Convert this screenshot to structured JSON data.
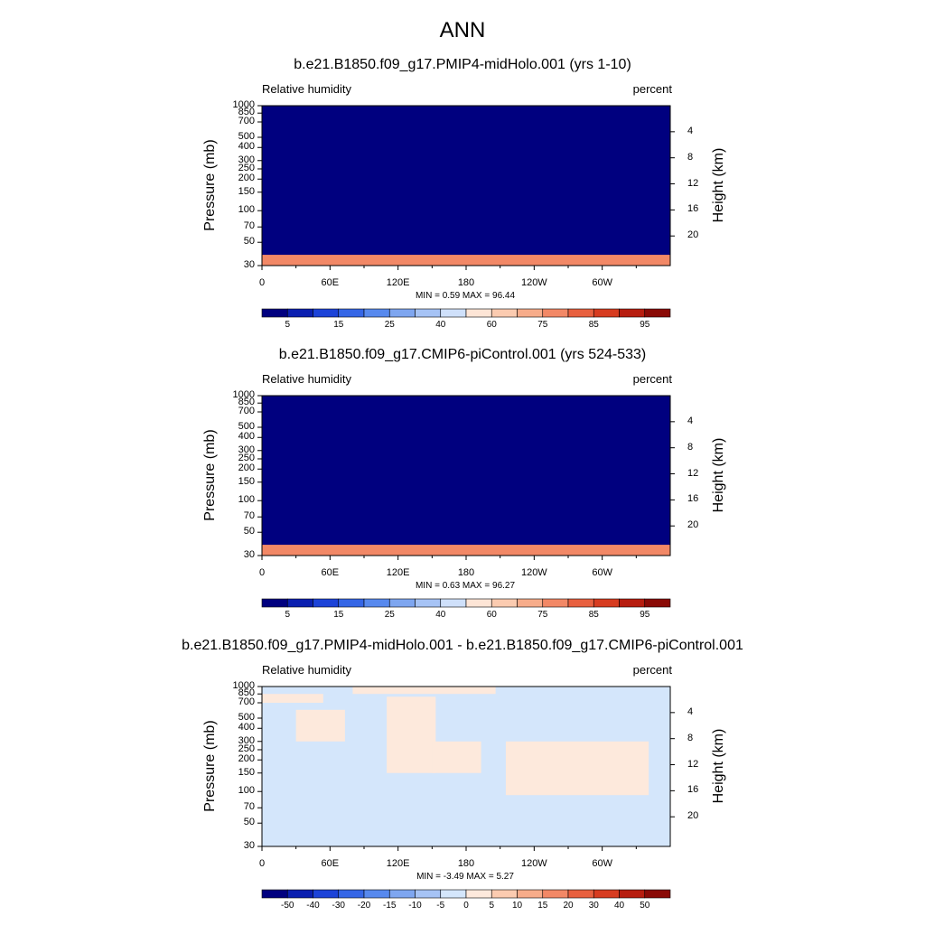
{
  "title": "ANN",
  "colors": {
    "abs_scale": [
      "#00007f",
      "#0a1fb0",
      "#1c43d8",
      "#3566e6",
      "#5789ee",
      "#7ea6f0",
      "#a6c3f5",
      "#cfe0fa",
      "#fde5d6",
      "#fbcbb0",
      "#f7ac8a",
      "#f28866",
      "#e8603f",
      "#d73c20",
      "#b71d0f",
      "#8a0a06",
      "#6a0000"
    ],
    "diff_scale": [
      "#00007f",
      "#0a1fb0",
      "#1c43d8",
      "#3566e6",
      "#5789ee",
      "#7ea6f0",
      "#a6c3f5",
      "#d4e6fb",
      "#fde9dc",
      "#fbcbb0",
      "#f7ac8a",
      "#f28866",
      "#e8603f",
      "#d73c20",
      "#b71d0f",
      "#8a0a06",
      "#6a0000"
    ],
    "topography": "#000000"
  },
  "chart_data": [
    {
      "type": "heatmap",
      "title": "b.e21.B1850.f09_g17.PMIP4-midHolo.001 (yrs 1-10)",
      "variable": "Relative humidity",
      "units": "percent",
      "ylabel": "Pressure (mb)",
      "ylabel_right": "Height (km)",
      "x_ticks": [
        "0",
        "60E",
        "120E",
        "180",
        "120W",
        "60W"
      ],
      "x_values": [
        0,
        60,
        120,
        180,
        240,
        300
      ],
      "xlim": [
        0,
        360
      ],
      "y_ticks": [
        "1000",
        "850",
        "700",
        "500",
        "400",
        "300",
        "250",
        "200",
        "150",
        "100",
        "70",
        "50",
        "30"
      ],
      "y_values": [
        1000,
        850,
        700,
        500,
        400,
        300,
        250,
        200,
        150,
        100,
        70,
        50,
        30
      ],
      "ylim": [
        1000,
        30
      ],
      "y_scale": "log",
      "height_ticks": [
        "4",
        "8",
        "12",
        "16",
        "20"
      ],
      "height_values": [
        4,
        8,
        12,
        16,
        20
      ],
      "min_label": "MIN =   0.59  MAX =  96.44",
      "min": 0.59,
      "max": 96.44,
      "colorbar_labels": [
        "5",
        "15",
        "25",
        "40",
        "60",
        "75",
        "85",
        "95"
      ],
      "levels": [
        5,
        10,
        15,
        20,
        25,
        30,
        40,
        50,
        60,
        65,
        70,
        75,
        80,
        85,
        90,
        95
      ]
    },
    {
      "type": "heatmap",
      "title": "b.e21.B1850.f09_g17.CMIP6-piControl.001 (yrs 524-533)",
      "variable": "Relative humidity",
      "units": "percent",
      "ylabel": "Pressure (mb)",
      "ylabel_right": "Height (km)",
      "x_ticks": [
        "0",
        "60E",
        "120E",
        "180",
        "120W",
        "60W"
      ],
      "x_values": [
        0,
        60,
        120,
        180,
        240,
        300
      ],
      "xlim": [
        0,
        360
      ],
      "y_ticks": [
        "1000",
        "850",
        "700",
        "500",
        "400",
        "300",
        "250",
        "200",
        "150",
        "100",
        "70",
        "50",
        "30"
      ],
      "y_values": [
        1000,
        850,
        700,
        500,
        400,
        300,
        250,
        200,
        150,
        100,
        70,
        50,
        30
      ],
      "ylim": [
        1000,
        30
      ],
      "y_scale": "log",
      "height_ticks": [
        "4",
        "8",
        "12",
        "16",
        "20"
      ],
      "height_values": [
        4,
        8,
        12,
        16,
        20
      ],
      "min_label": "MIN =   0.63  MAX =  96.27",
      "min": 0.63,
      "max": 96.27,
      "colorbar_labels": [
        "5",
        "15",
        "25",
        "40",
        "60",
        "75",
        "85",
        "95"
      ],
      "levels": [
        5,
        10,
        15,
        20,
        25,
        30,
        40,
        50,
        60,
        65,
        70,
        75,
        80,
        85,
        90,
        95
      ]
    },
    {
      "type": "heatmap",
      "title": "b.e21.B1850.f09_g17.PMIP4-midHolo.001 - b.e21.B1850.f09_g17.CMIP6-piControl.001",
      "variable": "Relative humidity",
      "units": "percent",
      "ylabel": "Pressure (mb)",
      "ylabel_right": "Height (km)",
      "x_ticks": [
        "0",
        "60E",
        "120E",
        "180",
        "120W",
        "60W"
      ],
      "x_values": [
        0,
        60,
        120,
        180,
        240,
        300
      ],
      "xlim": [
        0,
        360
      ],
      "y_ticks": [
        "1000",
        "850",
        "700",
        "500",
        "400",
        "300",
        "250",
        "200",
        "150",
        "100",
        "70",
        "50",
        "30"
      ],
      "y_values": [
        1000,
        850,
        700,
        500,
        400,
        300,
        250,
        200,
        150,
        100,
        70,
        50,
        30
      ],
      "ylim": [
        1000,
        30
      ],
      "y_scale": "log",
      "height_ticks": [
        "4",
        "8",
        "12",
        "16",
        "20"
      ],
      "height_values": [
        4,
        8,
        12,
        16,
        20
      ],
      "min_label": "MIN =  -3.49  MAX =   5.27",
      "min": -3.49,
      "max": 5.27,
      "colorbar_labels": [
        "-50",
        "-40",
        "-30",
        "-20",
        "-15",
        "-10",
        "-5",
        "0",
        "5",
        "10",
        "15",
        "20",
        "30",
        "40",
        "50"
      ],
      "levels": [
        -50,
        -40,
        -30,
        -20,
        -15,
        -10,
        -5,
        0,
        5,
        10,
        15,
        20,
        30,
        40,
        50
      ]
    }
  ]
}
